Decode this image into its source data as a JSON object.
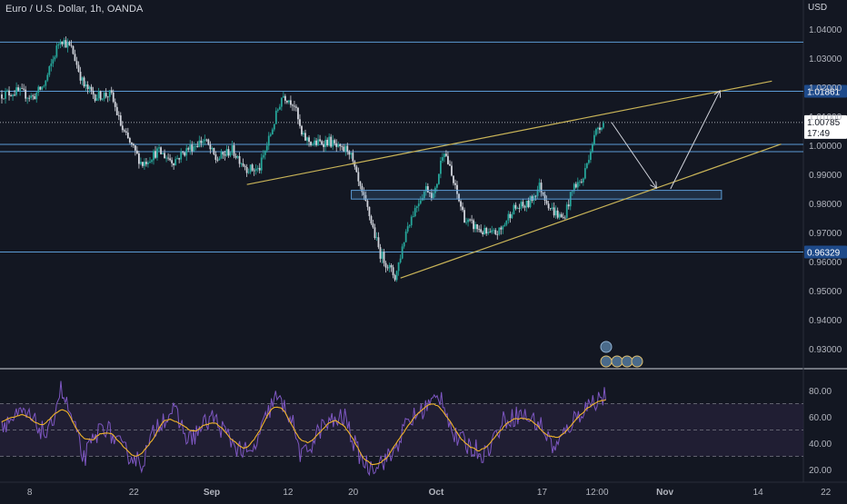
{
  "title": "Euro / U.S. Dollar, 1h, OANDA",
  "currency": "USD",
  "colors": {
    "background": "#131722",
    "candle_up": "#26a69a",
    "candle_down": "#d1d4dc",
    "level_line": "#5b9bd5",
    "channel": "#c9b458",
    "rsi_line": "#7e57c2",
    "rsi_ma": "#f0b429",
    "rsi_band": "#2a2340"
  },
  "chart_data": [
    {
      "type": "candlestick",
      "name": "price",
      "x_ticks": [
        "8",
        "22",
        "Sep",
        "12",
        "20",
        "Oct",
        "17",
        "12:00",
        "Nov",
        "14",
        "22"
      ],
      "y_ticks": [
        "1.04000",
        "1.03000",
        "1.02000",
        "1.01000",
        "1.00000",
        "0.99000",
        "0.98000",
        "0.97000",
        "0.96000",
        "0.95000",
        "0.94000",
        "0.93000"
      ],
      "ylim": [
        0.925,
        1.046
      ],
      "path_points": [
        {
          "t": 0,
          "p": 1.0175
        },
        {
          "t": 0.02,
          "p": 1.0185
        },
        {
          "t": 0.04,
          "p": 1.0165
        },
        {
          "t": 0.055,
          "p": 1.021
        },
        {
          "t": 0.075,
          "p": 1.037
        },
        {
          "t": 0.09,
          "p": 1.033
        },
        {
          "t": 0.105,
          "p": 1.0205
        },
        {
          "t": 0.12,
          "p": 1.017
        },
        {
          "t": 0.14,
          "p": 1.0175
        },
        {
          "t": 0.155,
          "p": 1.005
        },
        {
          "t": 0.18,
          "p": 0.9935
        },
        {
          "t": 0.2,
          "p": 0.998
        },
        {
          "t": 0.22,
          "p": 0.9945
        },
        {
          "t": 0.24,
          "p": 0.999
        },
        {
          "t": 0.26,
          "p": 1.002
        },
        {
          "t": 0.275,
          "p": 0.995
        },
        {
          "t": 0.295,
          "p": 0.9985
        },
        {
          "t": 0.315,
          "p": 0.992
        },
        {
          "t": 0.33,
          "p": 0.9915
        },
        {
          "t": 0.345,
          "p": 1.004
        },
        {
          "t": 0.36,
          "p": 1.0175
        },
        {
          "t": 0.375,
          "p": 1.0145
        },
        {
          "t": 0.385,
          "p": 1.003
        },
        {
          "t": 0.4,
          "p": 1.0005
        },
        {
          "t": 0.42,
          "p": 1.0015
        },
        {
          "t": 0.435,
          "p": 0.998
        },
        {
          "t": 0.445,
          "p": 0.999
        },
        {
          "t": 0.46,
          "p": 0.9845
        },
        {
          "t": 0.47,
          "p": 0.9775
        },
        {
          "t": 0.485,
          "p": 0.963
        },
        {
          "t": 0.505,
          "p": 0.9545
        },
        {
          "t": 0.52,
          "p": 0.972
        },
        {
          "t": 0.535,
          "p": 0.981
        },
        {
          "t": 0.545,
          "p": 0.9855
        },
        {
          "t": 0.555,
          "p": 0.9825
        },
        {
          "t": 0.567,
          "p": 0.9995
        },
        {
          "t": 0.58,
          "p": 0.9865
        },
        {
          "t": 0.595,
          "p": 0.974
        },
        {
          "t": 0.61,
          "p": 0.9715
        },
        {
          "t": 0.625,
          "p": 0.969
        },
        {
          "t": 0.64,
          "p": 0.9705
        },
        {
          "t": 0.655,
          "p": 0.978
        },
        {
          "t": 0.675,
          "p": 0.9795
        },
        {
          "t": 0.69,
          "p": 0.986
        },
        {
          "t": 0.705,
          "p": 0.978
        },
        {
          "t": 0.72,
          "p": 0.9745
        },
        {
          "t": 0.735,
          "p": 0.9865
        },
        {
          "t": 0.745,
          "p": 0.9875
        },
        {
          "t": 0.755,
          "p": 0.9985
        },
        {
          "t": 0.765,
          "p": 1.0065
        },
        {
          "t": 0.772,
          "p": 1.00785
        }
      ],
      "horizontal_levels": [
        {
          "price": 1.0355
        },
        {
          "price": 1.01861,
          "label": "1.01861"
        },
        {
          "price": 1.0003
        },
        {
          "price": 0.9978
        },
        {
          "price": 0.96329,
          "label": "0.96329"
        }
      ],
      "zone": {
        "start": 0.4485,
        "end": 0.9235,
        "top": 0.9845,
        "bottom": 0.9815
      },
      "channel_lines": [
        {
          "start": {
            "t": 0.3145,
            "p": 0.9865
          },
          "end": {
            "t": 0.9882,
            "p": 1.0221
          }
        },
        {
          "start": {
            "t": 0.5116,
            "p": 0.9543
          },
          "end": {
            "t": 1.0,
            "p": 1.0004
          }
        }
      ],
      "projection": [
        {
          "t": 0.7825,
          "p": 1.00785
        },
        {
          "t": 0.8395,
          "p": 0.9855
        },
        {
          "t": 0.8581,
          "p": 0.985
        },
        {
          "t": 0.9211,
          "p": 1.0185
        }
      ],
      "current_price": {
        "value": 1.00785,
        "label": "1.00785",
        "countdown": "17:49"
      }
    },
    {
      "type": "line",
      "name": "rsi",
      "y_ticks": [
        "80.00",
        "60.00",
        "40.00",
        "20.00"
      ],
      "ylim": [
        12,
        95
      ],
      "band": [
        30,
        70
      ],
      "midline": 50,
      "anchor_points": [
        {
          "t": 0,
          "v": 55
        },
        {
          "t": 0.03,
          "v": 62
        },
        {
          "t": 0.06,
          "v": 45
        },
        {
          "t": 0.075,
          "v": 82
        },
        {
          "t": 0.09,
          "v": 58
        },
        {
          "t": 0.105,
          "v": 28
        },
        {
          "t": 0.13,
          "v": 55
        },
        {
          "t": 0.155,
          "v": 35
        },
        {
          "t": 0.18,
          "v": 25
        },
        {
          "t": 0.2,
          "v": 55
        },
        {
          "t": 0.22,
          "v": 65
        },
        {
          "t": 0.24,
          "v": 42
        },
        {
          "t": 0.27,
          "v": 60
        },
        {
          "t": 0.3,
          "v": 38
        },
        {
          "t": 0.32,
          "v": 30
        },
        {
          "t": 0.35,
          "v": 75
        },
        {
          "t": 0.37,
          "v": 62
        },
        {
          "t": 0.385,
          "v": 28
        },
        {
          "t": 0.41,
          "v": 52
        },
        {
          "t": 0.44,
          "v": 60
        },
        {
          "t": 0.455,
          "v": 35
        },
        {
          "t": 0.47,
          "v": 22
        },
        {
          "t": 0.5,
          "v": 30
        },
        {
          "t": 0.52,
          "v": 55
        },
        {
          "t": 0.545,
          "v": 68
        },
        {
          "t": 0.565,
          "v": 76
        },
        {
          "t": 0.58,
          "v": 45
        },
        {
          "t": 0.6,
          "v": 38
        },
        {
          "t": 0.62,
          "v": 32
        },
        {
          "t": 0.645,
          "v": 58
        },
        {
          "t": 0.665,
          "v": 62
        },
        {
          "t": 0.69,
          "v": 55
        },
        {
          "t": 0.71,
          "v": 35
        },
        {
          "t": 0.73,
          "v": 55
        },
        {
          "t": 0.75,
          "v": 68
        },
        {
          "t": 0.765,
          "v": 74
        },
        {
          "t": 0.775,
          "v": 76
        }
      ]
    }
  ]
}
